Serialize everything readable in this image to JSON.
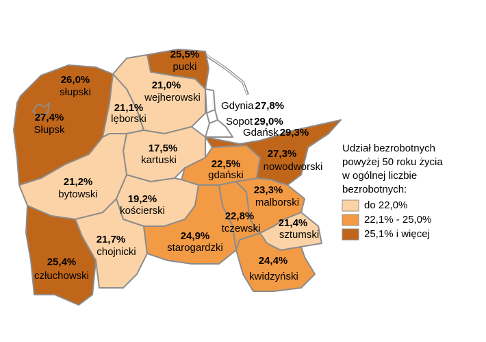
{
  "map": {
    "regions": [
      {
        "name": "słupski",
        "value": 26.0,
        "value_label": "26,0%",
        "color": "#c0661a"
      },
      {
        "name": "Słupsk",
        "value": 27.4,
        "value_label": "27,4%",
        "color": "#c0661a"
      },
      {
        "name": "pucki",
        "value": 25.5,
        "value_label": "25,5%",
        "color": "#c0661a"
      },
      {
        "name": "wejherowski",
        "value": 21.0,
        "value_label": "21,0%",
        "color": "#fcd3a6"
      },
      {
        "name": "lęborski",
        "value": 21.1,
        "value_label": "21,1%",
        "color": "#fcd3a6"
      },
      {
        "name": "kartuski",
        "value": 17.5,
        "value_label": "17,5%",
        "color": "#fcd3a6"
      },
      {
        "name": "gdański",
        "value": 22.5,
        "value_label": "22,5%",
        "color": "#f39a45"
      },
      {
        "name": "nowodworski",
        "value": 27.3,
        "value_label": "27,3%",
        "color": "#c0661a"
      },
      {
        "name": "bytowski",
        "value": 21.2,
        "value_label": "21,2%",
        "color": "#fcd3a6"
      },
      {
        "name": "kościerski",
        "value": 19.2,
        "value_label": "19,2%",
        "color": "#fcd3a6"
      },
      {
        "name": "chojnicki",
        "value": 21.7,
        "value_label": "21,7%",
        "color": "#fcd3a6"
      },
      {
        "name": "człuchowski",
        "value": 25.4,
        "value_label": "25,4%",
        "color": "#c0661a"
      },
      {
        "name": "starogardzki",
        "value": 24.9,
        "value_label": "24,9%",
        "color": "#f39a45"
      },
      {
        "name": "tczewski",
        "value": 22.8,
        "value_label": "22,8%",
        "color": "#f39a45"
      },
      {
        "name": "malborski",
        "value": 23.3,
        "value_label": "23,3%",
        "color": "#f39a45"
      },
      {
        "name": "sztumski",
        "value": 21.4,
        "value_label": "21,4%",
        "color": "#fcd3a6"
      },
      {
        "name": "kwidzyński",
        "value": 24.4,
        "value_label": "24,4%",
        "color": "#f39a45"
      }
    ],
    "cities": [
      {
        "name": "Gdynia",
        "value": 27.8,
        "value_label": "27,8%",
        "color": "#ffffff"
      },
      {
        "name": "Sopot",
        "value": 29.0,
        "value_label": "29,0%",
        "color": "#ffffff"
      },
      {
        "name": "Gdańsk",
        "value": 29.3,
        "value_label": "29,3%",
        "color": "#ffffff"
      }
    ],
    "legend": {
      "title": [
        "Udział bezrobotnych",
        "powyżej 50 roku życia",
        "w ogólnej liczbie",
        "bezrobotnych:"
      ],
      "items": [
        {
          "label": "do 22,0%",
          "color": "#fcd3a6"
        },
        {
          "label": "22,1% - 25,0%",
          "color": "#f39a45"
        },
        {
          "label": "25,1% i więcej",
          "color": "#c0661a"
        }
      ]
    }
  }
}
